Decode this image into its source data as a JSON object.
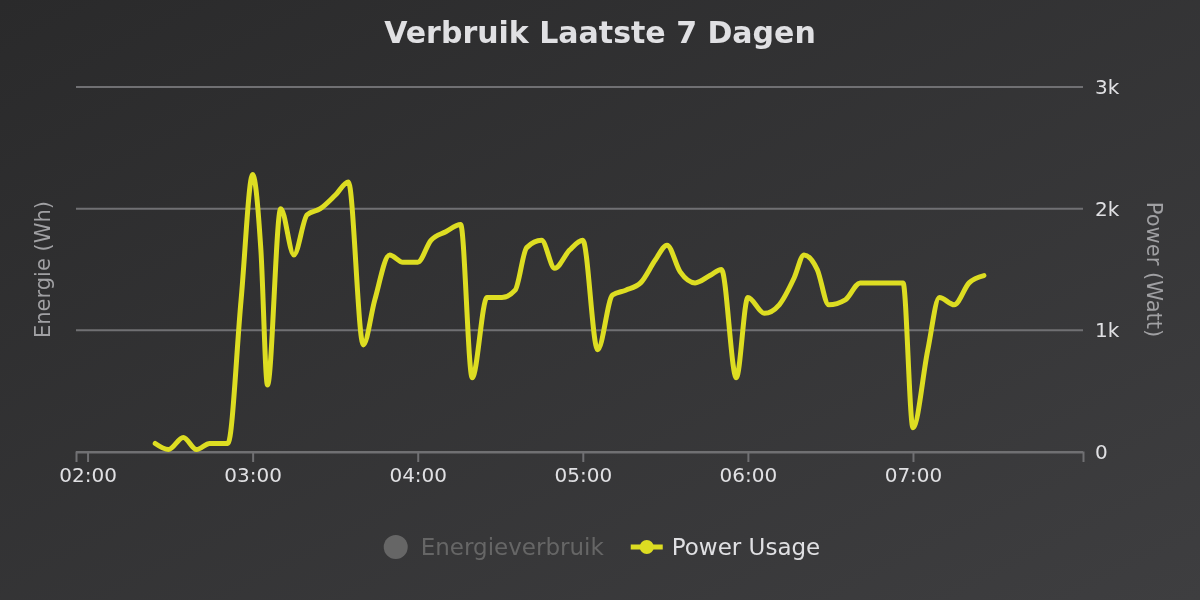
{
  "chart_data": {
    "type": "line",
    "title": "Verbruik Laatste 7 Dagen",
    "ylabel": "Energie (Wh)",
    "y2label": "Power (Watt)",
    "x": [
      2.41,
      2.49,
      2.58,
      2.66,
      2.74,
      2.85,
      2.93,
      3.0,
      3.05,
      3.09,
      3.17,
      3.25,
      3.33,
      3.41,
      3.5,
      3.58,
      3.67,
      3.74,
      3.83,
      3.91,
      4.0,
      4.08,
      4.17,
      4.26,
      4.33,
      4.42,
      4.51,
      4.59,
      4.66,
      4.75,
      4.83,
      4.92,
      5.0,
      5.09,
      5.18,
      5.26,
      5.35,
      5.44,
      5.51,
      5.59,
      5.68,
      5.77,
      5.84,
      5.93,
      6.0,
      6.1,
      6.19,
      6.28,
      6.34,
      6.42,
      6.49,
      6.59,
      6.68,
      6.77,
      6.86,
      6.94,
      7.0,
      7.09,
      7.16,
      7.25,
      7.34,
      7.43
    ],
    "series": [
      {
        "name": "Energieverbruik",
        "type": "bar",
        "color": "#666666",
        "values": [
          null,
          null,
          null,
          null,
          null,
          null,
          null,
          null,
          null,
          null,
          null,
          null,
          null,
          null,
          null,
          null,
          null,
          null,
          null,
          null,
          null,
          null,
          null,
          null,
          null,
          null,
          null,
          null,
          null,
          null,
          null,
          null,
          null,
          null,
          null,
          null,
          null,
          null,
          null,
          null,
          null,
          null,
          null,
          null,
          null,
          null,
          null,
          null,
          null,
          null,
          null,
          null,
          null,
          null,
          null,
          null,
          null,
          null,
          null,
          null,
          null,
          null
        ]
      },
      {
        "name": "Power Usage",
        "axis": "y2",
        "color": "#dddd22",
        "values": [
          70,
          20,
          120,
          20,
          70,
          70,
          1250,
          2280,
          1660,
          550,
          2000,
          1620,
          1950,
          2000,
          2110,
          2220,
          880,
          1250,
          1620,
          1560,
          1560,
          1740,
          1810,
          1870,
          610,
          1270,
          1270,
          1330,
          1680,
          1740,
          1510,
          1660,
          1740,
          840,
          1290,
          1330,
          1390,
          1580,
          1700,
          1480,
          1390,
          1450,
          1500,
          610,
          1270,
          1140,
          1210,
          1430,
          1620,
          1500,
          1210,
          1250,
          1390,
          1390,
          1390,
          1390,
          200,
          840,
          1270,
          1210,
          1390,
          1450
        ]
      }
    ],
    "xlim": [
      1.93,
      8.03
    ],
    "xticks": [
      {
        "value": 2,
        "label": "02:00"
      },
      {
        "value": 3,
        "label": "03:00"
      },
      {
        "value": 4,
        "label": "04:00"
      },
      {
        "value": 5,
        "label": "05:00"
      },
      {
        "value": 6,
        "label": "06:00"
      },
      {
        "value": 7,
        "label": "07:00"
      }
    ],
    "y2lim": [
      0,
      3000
    ],
    "y2ticks": [
      0,
      {
        "value": 1000,
        "label": "1k"
      },
      {
        "value": 2000,
        "label": "2k"
      },
      {
        "value": 3000,
        "label": "3k"
      }
    ],
    "grid": "y",
    "legend": "bottom",
    "marker": "none",
    "line_style": "solid"
  }
}
